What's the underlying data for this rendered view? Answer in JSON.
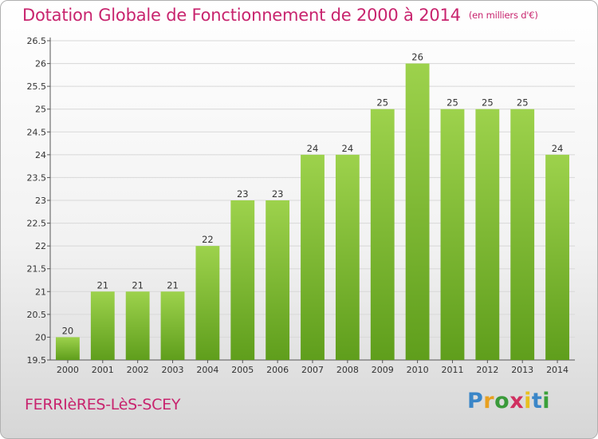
{
  "title": "Dotation Globale de Fonctionnement de 2000 à 2014",
  "unit": "(en milliers d'€)",
  "commune": "FERRIèRES-LèS-SCEY",
  "brand": {
    "letters": [
      "P",
      "r",
      "o",
      "x",
      "i",
      "t",
      "i"
    ],
    "colors": [
      "#3a86c8",
      "#e8a020",
      "#3a9a3a",
      "#d03060",
      "#e8c020",
      "#3a86c8",
      "#3aa03a"
    ]
  },
  "colors": {
    "accent": "#c8246e",
    "bar_light": "#9dd24c",
    "bar_dark": "#5f9e1c"
  },
  "chart_data": {
    "type": "bar",
    "categories": [
      "2000",
      "2001",
      "2002",
      "2003",
      "2004",
      "2005",
      "2006",
      "2007",
      "2008",
      "2009",
      "2010",
      "2011",
      "2012",
      "2013",
      "2014"
    ],
    "values": [
      20,
      21,
      21,
      21,
      22,
      23,
      23,
      24,
      24,
      25,
      26,
      25,
      25,
      25,
      24
    ],
    "ylim": [
      19.5,
      26.5
    ],
    "yticks": [
      "19.5",
      "20",
      "20.5",
      "21",
      "21.5",
      "22",
      "22.5",
      "23",
      "23.5",
      "24",
      "24.5",
      "25",
      "25.5",
      "26",
      "26.5"
    ],
    "grid": true
  }
}
